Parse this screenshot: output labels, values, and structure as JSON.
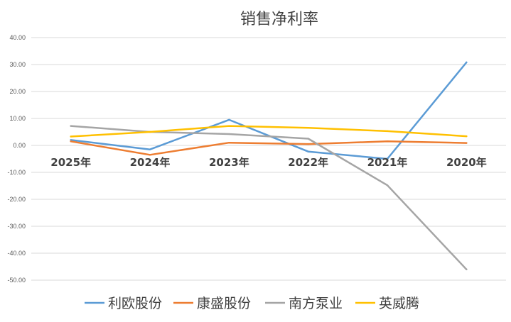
{
  "chart_data": {
    "type": "line",
    "title": "销售净利率",
    "categories": [
      "2025年",
      "2024年",
      "2023年",
      "2022年",
      "2021年",
      "2020年"
    ],
    "ylim": [
      -50,
      40
    ],
    "yticks": [
      "40.00",
      "30.00",
      "20.00",
      "10.00",
      "0.00",
      "-10.00",
      "-20.00",
      "-30.00",
      "-40.00",
      "-50.00"
    ],
    "ytick_values": [
      40,
      30,
      20,
      10,
      0,
      -10,
      -20,
      -30,
      -40,
      -50
    ],
    "grid": true,
    "legend_position": "bottom",
    "series": [
      {
        "name": "利欧股份",
        "color": "#5B9BD5",
        "values": [
          2.0,
          -1.5,
          9.5,
          -2.3,
          -5.0,
          30.8
        ]
      },
      {
        "name": "康盛股份",
        "color": "#ED7D31",
        "values": [
          1.5,
          -3.5,
          1.0,
          0.5,
          1.5,
          0.9
        ]
      },
      {
        "name": "南方泵业",
        "color": "#A5A5A5",
        "values": [
          7.2,
          5.0,
          4.2,
          2.5,
          -14.8,
          -46.0
        ]
      },
      {
        "name": "英威腾",
        "color": "#FFC000",
        "values": [
          3.3,
          5.0,
          7.2,
          6.5,
          5.3,
          3.4
        ]
      }
    ]
  }
}
